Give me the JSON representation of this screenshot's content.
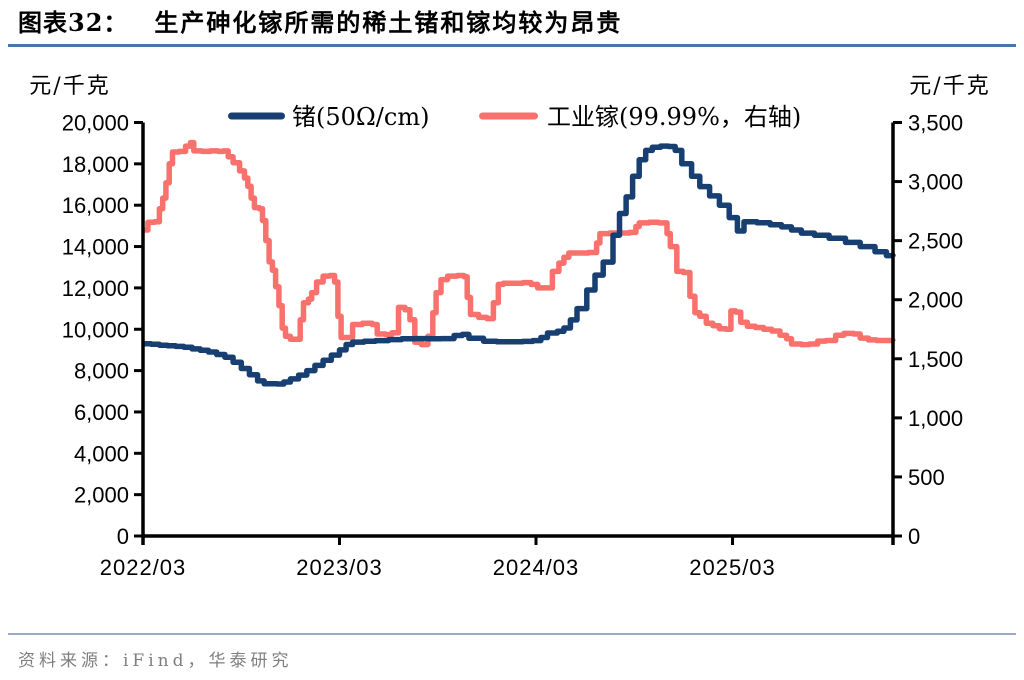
{
  "header": {
    "figure_number": "图表32：",
    "caption": "生产砷化镓所需的稀土锗和镓均较为昂贵"
  },
  "footer": {
    "source": "资料来源：iFind，华泰研究"
  },
  "colors": {
    "germanium_line": "#183f72",
    "gallium_line": "#f8716c",
    "axis": "#000000",
    "title_rule": "#4a76ad",
    "footer_rule": "#9aa9c4",
    "source_text": "#7f7f7f"
  },
  "chart_data": {
    "type": "line",
    "title": "生产砷化镓所需的稀土锗和镓均较为昂贵",
    "legend_position": "top",
    "grid": false,
    "left_axis": {
      "unit": "元/千克",
      "min": 0,
      "max": 20000,
      "step": 2000
    },
    "right_axis": {
      "unit": "元/千克",
      "min": 0,
      "max": 3500,
      "step": 500
    },
    "x_axis": {
      "months_total": 45.8,
      "tick_months": [
        0,
        12,
        24,
        36
      ],
      "tick_labels": [
        "2022/03",
        "2023/03",
        "2024/03",
        "2025/03"
      ]
    },
    "series": [
      {
        "name": "工业镓(99.99%，右轴)",
        "axis": "right",
        "color": "#f8716c",
        "points": [
          [
            0,
            2590
          ],
          [
            0.3,
            2655
          ],
          [
            0.7,
            2660
          ],
          [
            1,
            2770
          ],
          [
            1.2,
            2860
          ],
          [
            1.4,
            2990
          ],
          [
            1.6,
            3150
          ],
          [
            1.8,
            3250
          ],
          [
            2.2,
            3255
          ],
          [
            2.6,
            3300
          ],
          [
            2.9,
            3330
          ],
          [
            3.1,
            3260
          ],
          [
            3.6,
            3255
          ],
          [
            4.1,
            3260
          ],
          [
            4.6,
            3255
          ],
          [
            4.9,
            3260
          ],
          [
            5.2,
            3210
          ],
          [
            5.5,
            3160
          ],
          [
            5.9,
            3090
          ],
          [
            6.2,
            3030
          ],
          [
            6.4,
            2960
          ],
          [
            6.6,
            2860
          ],
          [
            6.8,
            2780
          ],
          [
            7.1,
            2770
          ],
          [
            7.3,
            2670
          ],
          [
            7.5,
            2500
          ],
          [
            7.7,
            2320
          ],
          [
            7.9,
            2250
          ],
          [
            8.1,
            2110
          ],
          [
            8.3,
            1950
          ],
          [
            8.5,
            1760
          ],
          [
            8.7,
            1690
          ],
          [
            9,
            1665
          ],
          [
            9.4,
            1665
          ],
          [
            9.6,
            1830
          ],
          [
            9.8,
            1975
          ],
          [
            10.1,
            2005
          ],
          [
            10.3,
            2060
          ],
          [
            10.6,
            2150
          ],
          [
            11,
            2200
          ],
          [
            11.4,
            2205
          ],
          [
            11.7,
            2150
          ],
          [
            11.9,
            1860
          ],
          [
            12.1,
            1680
          ],
          [
            12.5,
            1680
          ],
          [
            12.8,
            1790
          ],
          [
            13.4,
            1800
          ],
          [
            14,
            1790
          ],
          [
            14.3,
            1710
          ],
          [
            14.8,
            1705
          ],
          [
            15.2,
            1720
          ],
          [
            15.6,
            1935
          ],
          [
            16,
            1915
          ],
          [
            16.3,
            1830
          ],
          [
            16.6,
            1640
          ],
          [
            17,
            1620
          ],
          [
            17.4,
            1690
          ],
          [
            17.7,
            1890
          ],
          [
            17.9,
            2060
          ],
          [
            18.2,
            2170
          ],
          [
            18.6,
            2200
          ],
          [
            19.2,
            2205
          ],
          [
            19.6,
            2195
          ],
          [
            19.8,
            2020
          ],
          [
            20,
            1875
          ],
          [
            20.5,
            1850
          ],
          [
            21,
            1840
          ],
          [
            21.4,
            1975
          ],
          [
            21.7,
            2130
          ],
          [
            22,
            2140
          ],
          [
            22.6,
            2140
          ],
          [
            23.2,
            2145
          ],
          [
            23.7,
            2130
          ],
          [
            24.1,
            2100
          ],
          [
            24.6,
            2100
          ],
          [
            25,
            2240
          ],
          [
            25.4,
            2310
          ],
          [
            25.7,
            2360
          ],
          [
            26,
            2395
          ],
          [
            26.6,
            2395
          ],
          [
            27.2,
            2400
          ],
          [
            27.7,
            2480
          ],
          [
            27.9,
            2560
          ],
          [
            28.5,
            2565
          ],
          [
            29.1,
            2565
          ],
          [
            29.7,
            2570
          ],
          [
            30.1,
            2620
          ],
          [
            30.3,
            2650
          ],
          [
            30.9,
            2655
          ],
          [
            31.5,
            2650
          ],
          [
            32,
            2560
          ],
          [
            32.2,
            2450
          ],
          [
            32.6,
            2240
          ],
          [
            33,
            2230
          ],
          [
            33.4,
            2030
          ],
          [
            33.7,
            1890
          ],
          [
            34,
            1860
          ],
          [
            34.4,
            1800
          ],
          [
            34.8,
            1780
          ],
          [
            35.2,
            1755
          ],
          [
            35.6,
            1750
          ],
          [
            35.9,
            1905
          ],
          [
            36.2,
            1895
          ],
          [
            36.5,
            1810
          ],
          [
            36.9,
            1775
          ],
          [
            37.4,
            1765
          ],
          [
            37.9,
            1750
          ],
          [
            38.4,
            1735
          ],
          [
            38.9,
            1700
          ],
          [
            39.3,
            1670
          ],
          [
            39.6,
            1625
          ],
          [
            40.2,
            1620
          ],
          [
            40.7,
            1625
          ],
          [
            41.2,
            1650
          ],
          [
            41.7,
            1655
          ],
          [
            42.3,
            1700
          ],
          [
            42.8,
            1715
          ],
          [
            43.4,
            1710
          ],
          [
            43.8,
            1675
          ],
          [
            44.3,
            1660
          ],
          [
            44.8,
            1655
          ],
          [
            45.3,
            1655
          ],
          [
            45.8,
            1650
          ]
        ]
      },
      {
        "name": "锗(50Ω/cm)",
        "axis": "left",
        "color": "#183f72",
        "points": [
          [
            0,
            9300
          ],
          [
            0.5,
            9270
          ],
          [
            1,
            9230
          ],
          [
            1.5,
            9200
          ],
          [
            2,
            9170
          ],
          [
            2.5,
            9130
          ],
          [
            3,
            9050
          ],
          [
            3.5,
            8980
          ],
          [
            4,
            8900
          ],
          [
            4.5,
            8780
          ],
          [
            5,
            8650
          ],
          [
            5.5,
            8400
          ],
          [
            6,
            8100
          ],
          [
            6.5,
            7800
          ],
          [
            7,
            7500
          ],
          [
            7.4,
            7360
          ],
          [
            8.2,
            7350
          ],
          [
            8.6,
            7450
          ],
          [
            9,
            7600
          ],
          [
            9.5,
            7780
          ],
          [
            10,
            8000
          ],
          [
            10.5,
            8250
          ],
          [
            11,
            8500
          ],
          [
            11.5,
            8750
          ],
          [
            12,
            9000
          ],
          [
            12.4,
            9260
          ],
          [
            12.8,
            9380
          ],
          [
            13.5,
            9420
          ],
          [
            14.2,
            9450
          ],
          [
            15,
            9500
          ],
          [
            15.8,
            9540
          ],
          [
            16.6,
            9550
          ],
          [
            17.4,
            9540
          ],
          [
            18.2,
            9550
          ],
          [
            19,
            9700
          ],
          [
            19.5,
            9750
          ],
          [
            19.9,
            9560
          ],
          [
            20.8,
            9420
          ],
          [
            21.6,
            9400
          ],
          [
            22.4,
            9400
          ],
          [
            23.2,
            9410
          ],
          [
            23.8,
            9450
          ],
          [
            24.3,
            9600
          ],
          [
            24.7,
            9820
          ],
          [
            25.3,
            9900
          ],
          [
            25.7,
            10060
          ],
          [
            26.1,
            10450
          ],
          [
            26.5,
            11000
          ],
          [
            27.1,
            11900
          ],
          [
            27.6,
            12620
          ],
          [
            28.1,
            13250
          ],
          [
            28.7,
            14550
          ],
          [
            29.1,
            15600
          ],
          [
            29.5,
            16400
          ],
          [
            29.9,
            17400
          ],
          [
            30.3,
            18200
          ],
          [
            30.7,
            18650
          ],
          [
            31.1,
            18800
          ],
          [
            31.6,
            18860
          ],
          [
            32.1,
            18840
          ],
          [
            32.5,
            18650
          ],
          [
            32.9,
            18000
          ],
          [
            33.5,
            17400
          ],
          [
            34,
            16900
          ],
          [
            34.6,
            16450
          ],
          [
            35.2,
            16000
          ],
          [
            35.8,
            15400
          ],
          [
            36.3,
            14750
          ],
          [
            36.7,
            15200
          ],
          [
            37.5,
            15150
          ],
          [
            38.3,
            15050
          ],
          [
            39,
            14950
          ],
          [
            39.6,
            14800
          ],
          [
            40.2,
            14650
          ],
          [
            41,
            14550
          ],
          [
            41.9,
            14400
          ],
          [
            42.9,
            14200
          ],
          [
            43.8,
            14000
          ],
          [
            44.7,
            13750
          ],
          [
            45.4,
            13560
          ],
          [
            45.8,
            13520
          ]
        ]
      }
    ]
  }
}
